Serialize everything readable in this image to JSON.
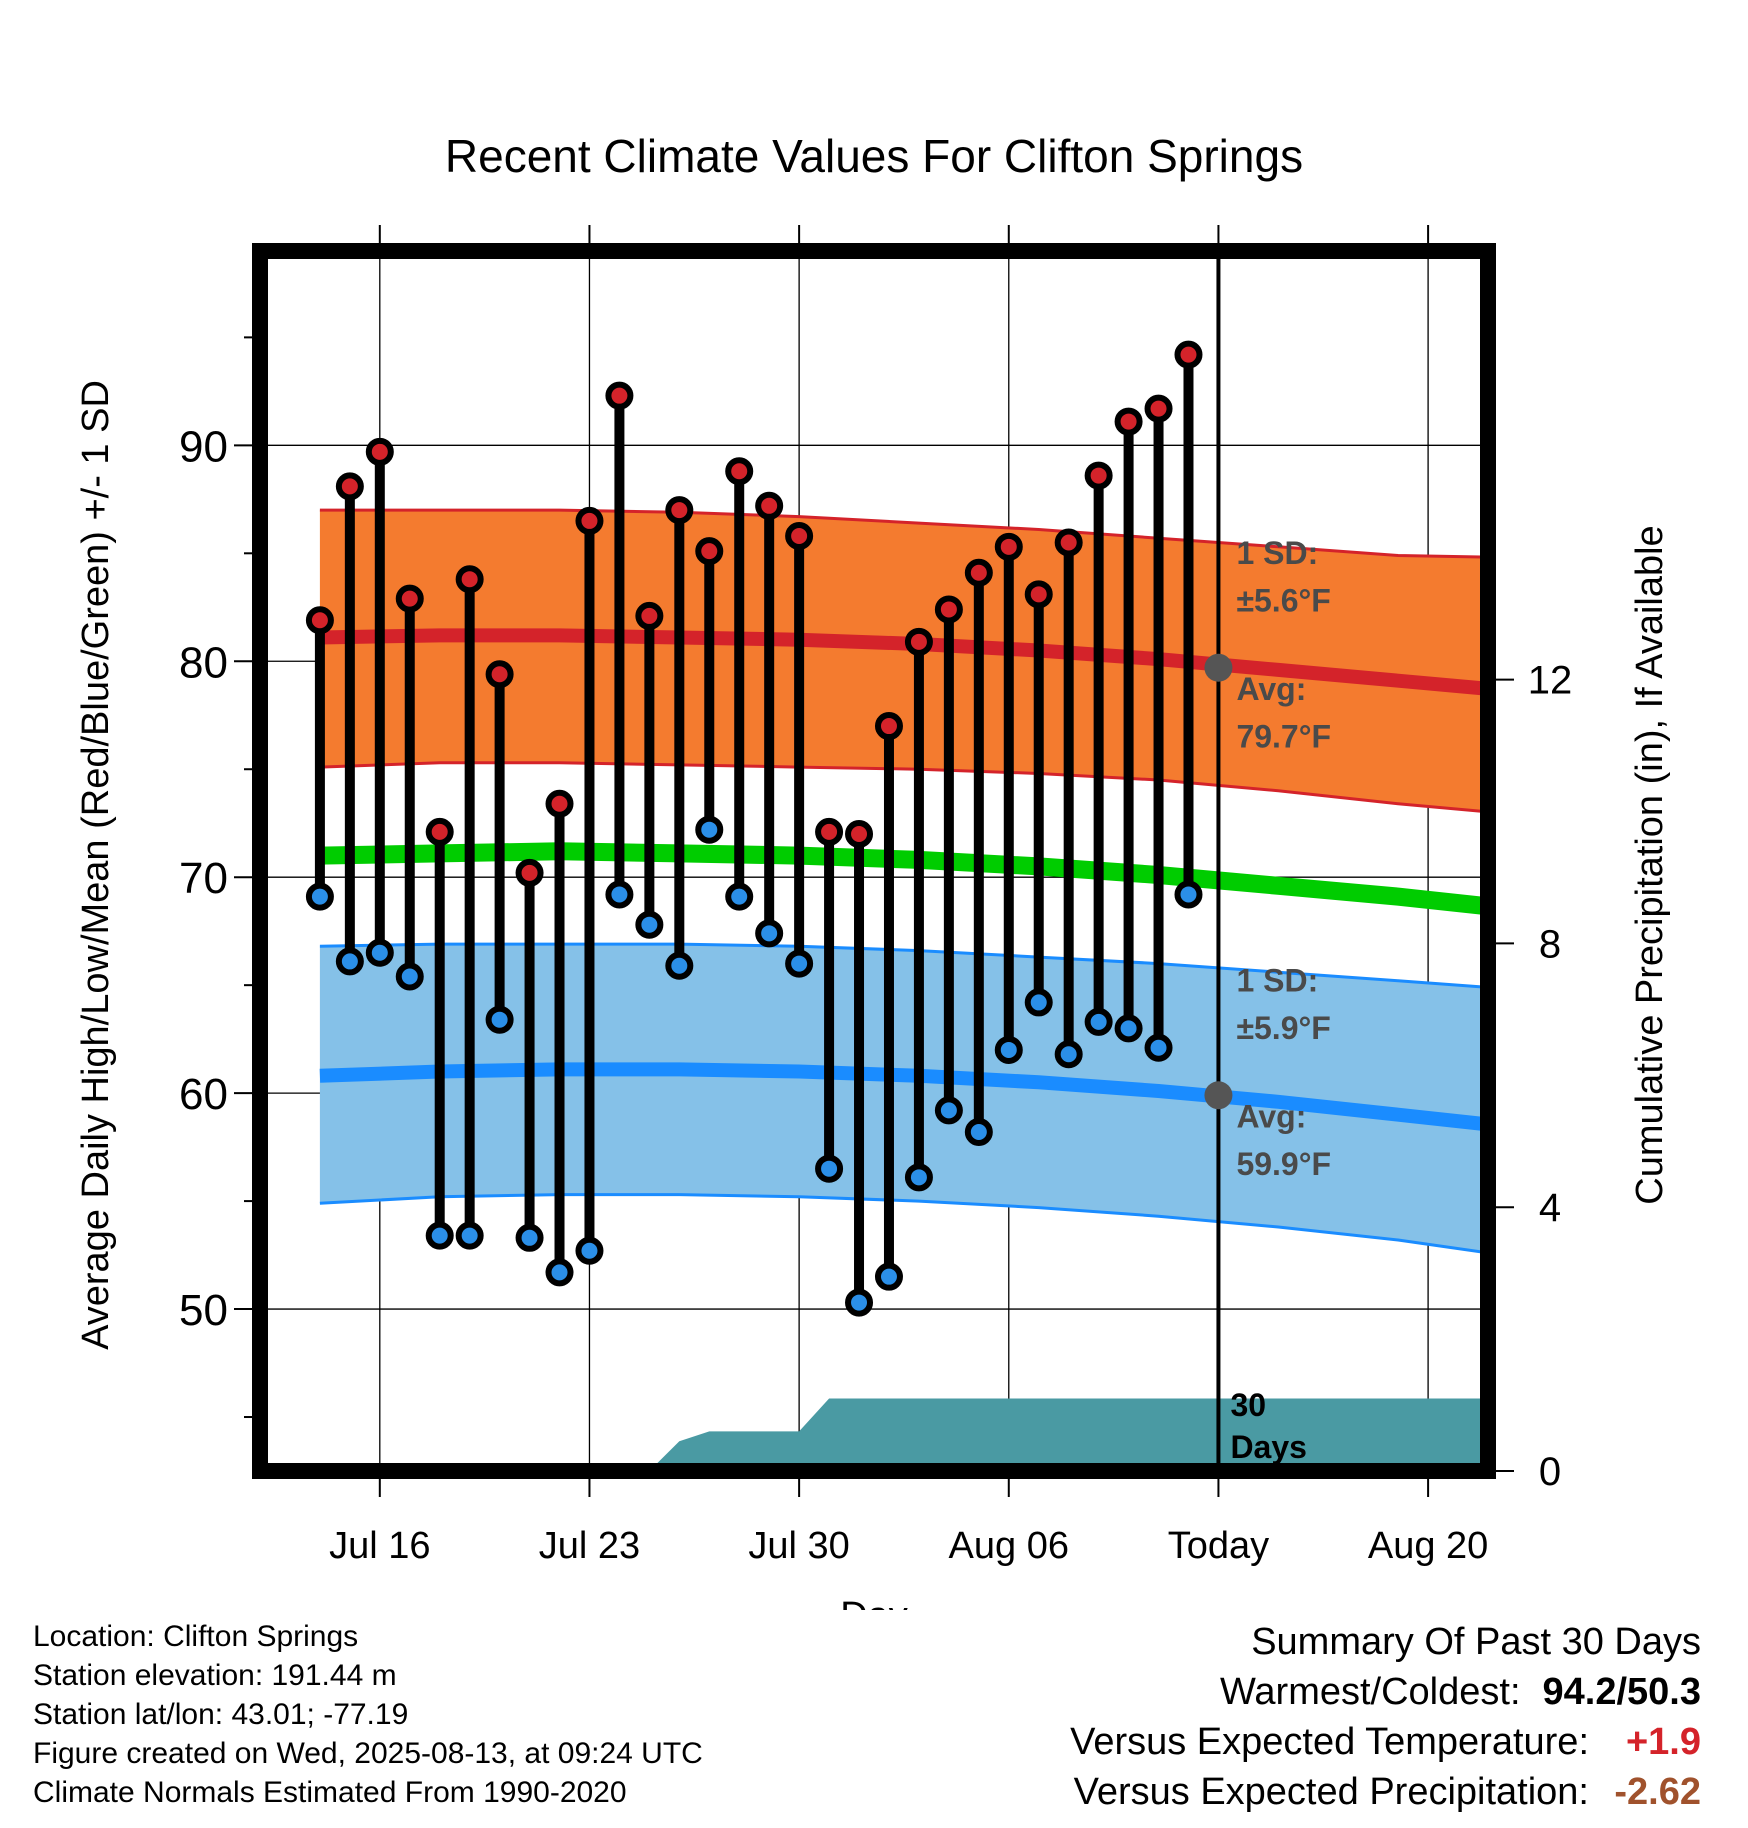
{
  "chart_data": {
    "type": "line",
    "title": "Recent Climate Values For Clifton Springs",
    "xlabel": "Day",
    "ylabel": "Average Daily High/Low/Mean (Red/Blue/Green) +/- 1 SD",
    "y2label": "Cumulative Precipitation (in), If Available",
    "x_range": [
      "2025-07-12",
      "2025-08-22"
    ],
    "ylim": [
      42.5,
      99
    ],
    "y2lim": [
      0,
      18.5
    ],
    "yticks": [
      50,
      60,
      70,
      80,
      90
    ],
    "y2ticks": [
      0,
      4,
      8,
      12
    ],
    "xticks": [
      {
        "date": "2025-07-16",
        "label": "Jul 16"
      },
      {
        "date": "2025-07-23",
        "label": "Jul 23"
      },
      {
        "date": "2025-07-30",
        "label": "Jul 30"
      },
      {
        "date": "2025-08-06",
        "label": "Aug 06"
      },
      {
        "date": "2025-08-13",
        "label": "Today"
      },
      {
        "date": "2025-08-20",
        "label": "Aug 20"
      }
    ],
    "today": "2025-08-13",
    "today_box_label": [
      "30",
      "Days"
    ],
    "normals": {
      "dates": [
        "2025-07-14",
        "2025-07-18",
        "2025-07-22",
        "2025-07-26",
        "2025-07-30",
        "2025-08-03",
        "2025-08-07",
        "2025-08-11",
        "2025-08-15",
        "2025-08-19",
        "2025-08-23"
      ],
      "high_avg": [
        81.1,
        81.2,
        81.2,
        81.1,
        81.0,
        80.8,
        80.5,
        80.1,
        79.6,
        79.1,
        78.6
      ],
      "high_upper": [
        87.0,
        87.0,
        87.0,
        86.9,
        86.7,
        86.4,
        86.1,
        85.7,
        85.3,
        84.9,
        84.8
      ],
      "high_lower": [
        75.1,
        75.3,
        75.3,
        75.2,
        75.1,
        75.0,
        74.8,
        74.5,
        74.0,
        73.4,
        72.9
      ],
      "low_avg": [
        60.8,
        61.0,
        61.1,
        61.1,
        61.0,
        60.8,
        60.5,
        60.1,
        59.6,
        59.0,
        58.4
      ],
      "low_upper": [
        66.8,
        66.9,
        66.9,
        66.9,
        66.8,
        66.6,
        66.3,
        66.0,
        65.6,
        65.2,
        64.8
      ],
      "low_lower": [
        54.9,
        55.2,
        55.3,
        55.3,
        55.2,
        55.0,
        54.7,
        54.3,
        53.8,
        53.2,
        52.4
      ],
      "mean_avg": [
        71.0,
        71.1,
        71.2,
        71.1,
        71.0,
        70.8,
        70.5,
        70.1,
        69.6,
        69.1,
        68.5
      ]
    },
    "daily": {
      "dates": [
        "2025-07-14",
        "2025-07-15",
        "2025-07-16",
        "2025-07-17",
        "2025-07-18",
        "2025-07-19",
        "2025-07-20",
        "2025-07-21",
        "2025-07-22",
        "2025-07-23",
        "2025-07-24",
        "2025-07-25",
        "2025-07-26",
        "2025-07-27",
        "2025-07-28",
        "2025-07-29",
        "2025-07-30",
        "2025-07-31",
        "2025-08-01",
        "2025-08-02",
        "2025-08-03",
        "2025-08-04",
        "2025-08-05",
        "2025-08-06",
        "2025-08-07",
        "2025-08-08",
        "2025-08-09",
        "2025-08-10",
        "2025-08-11",
        "2025-08-12"
      ],
      "high": [
        81.9,
        88.1,
        89.7,
        82.9,
        72.1,
        83.8,
        79.4,
        70.2,
        73.4,
        86.5,
        92.3,
        82.1,
        87.0,
        85.1,
        88.8,
        87.2,
        85.8,
        72.1,
        72.0,
        77.0,
        80.9,
        82.4,
        84.1,
        85.3,
        83.1,
        85.5,
        88.6,
        91.1,
        91.7,
        94.2
      ],
      "low": [
        69.1,
        66.1,
        66.5,
        65.4,
        53.4,
        53.4,
        63.4,
        53.3,
        51.7,
        52.7,
        69.2,
        67.8,
        65.9,
        72.2,
        69.1,
        67.4,
        66.0,
        56.5,
        50.3,
        51.5,
        56.1,
        59.2,
        58.2,
        62.0,
        64.2,
        61.8,
        63.3,
        63.0,
        62.1,
        69.2
      ]
    },
    "precip": {
      "dates": [
        "2025-07-25",
        "2025-07-26",
        "2025-07-27",
        "2025-07-30",
        "2025-07-31",
        "2025-08-22"
      ],
      "values": [
        0,
        0.45,
        0.6,
        0.6,
        1.1,
        1.1
      ]
    },
    "annotations": {
      "high_sd_label": "1 SD:",
      "high_sd_value": "±5.6°F",
      "high_avg_label": "Avg:",
      "high_avg_value": "79.7°F",
      "low_sd_label": "1 SD:",
      "low_sd_value": "±5.9°F",
      "low_avg_label": "Avg:",
      "low_avg_value": "59.9°F"
    },
    "today_high_avg": 79.7,
    "today_low_avg": 59.9,
    "colors": {
      "high_band": "#f47b2f",
      "high_line": "#d4232a",
      "low_band": "#85c1e8",
      "low_line": "#1a8cff",
      "mean_line": "#00cc00",
      "precip": "#4a9aa3",
      "high_dot": "#d4232a",
      "low_dot": "#2b8fe8",
      "marker": "#555555"
    }
  },
  "footer": {
    "location": "Location: Clifton Springs",
    "elevation": "Station elevation: 191.44 m",
    "latlon": "Station lat/lon: 43.01; -77.19",
    "created": "Figure created on Wed, 2025-08-13, at 09:24 UTC",
    "normals": "Climate Normals Estimated From 1990-2020"
  },
  "summary": {
    "title": "Summary Of Past 30 Days",
    "warm_cold_label": "Warmest/Coldest:",
    "warm_cold_value": "94.2/50.3",
    "temp_label": "Versus Expected Temperature:",
    "temp_value": "+1.9",
    "temp_color": "#d4232a",
    "precip_label": "Versus Expected Precipitation:",
    "precip_value": "-2.62",
    "precip_color": "#a0522d"
  }
}
